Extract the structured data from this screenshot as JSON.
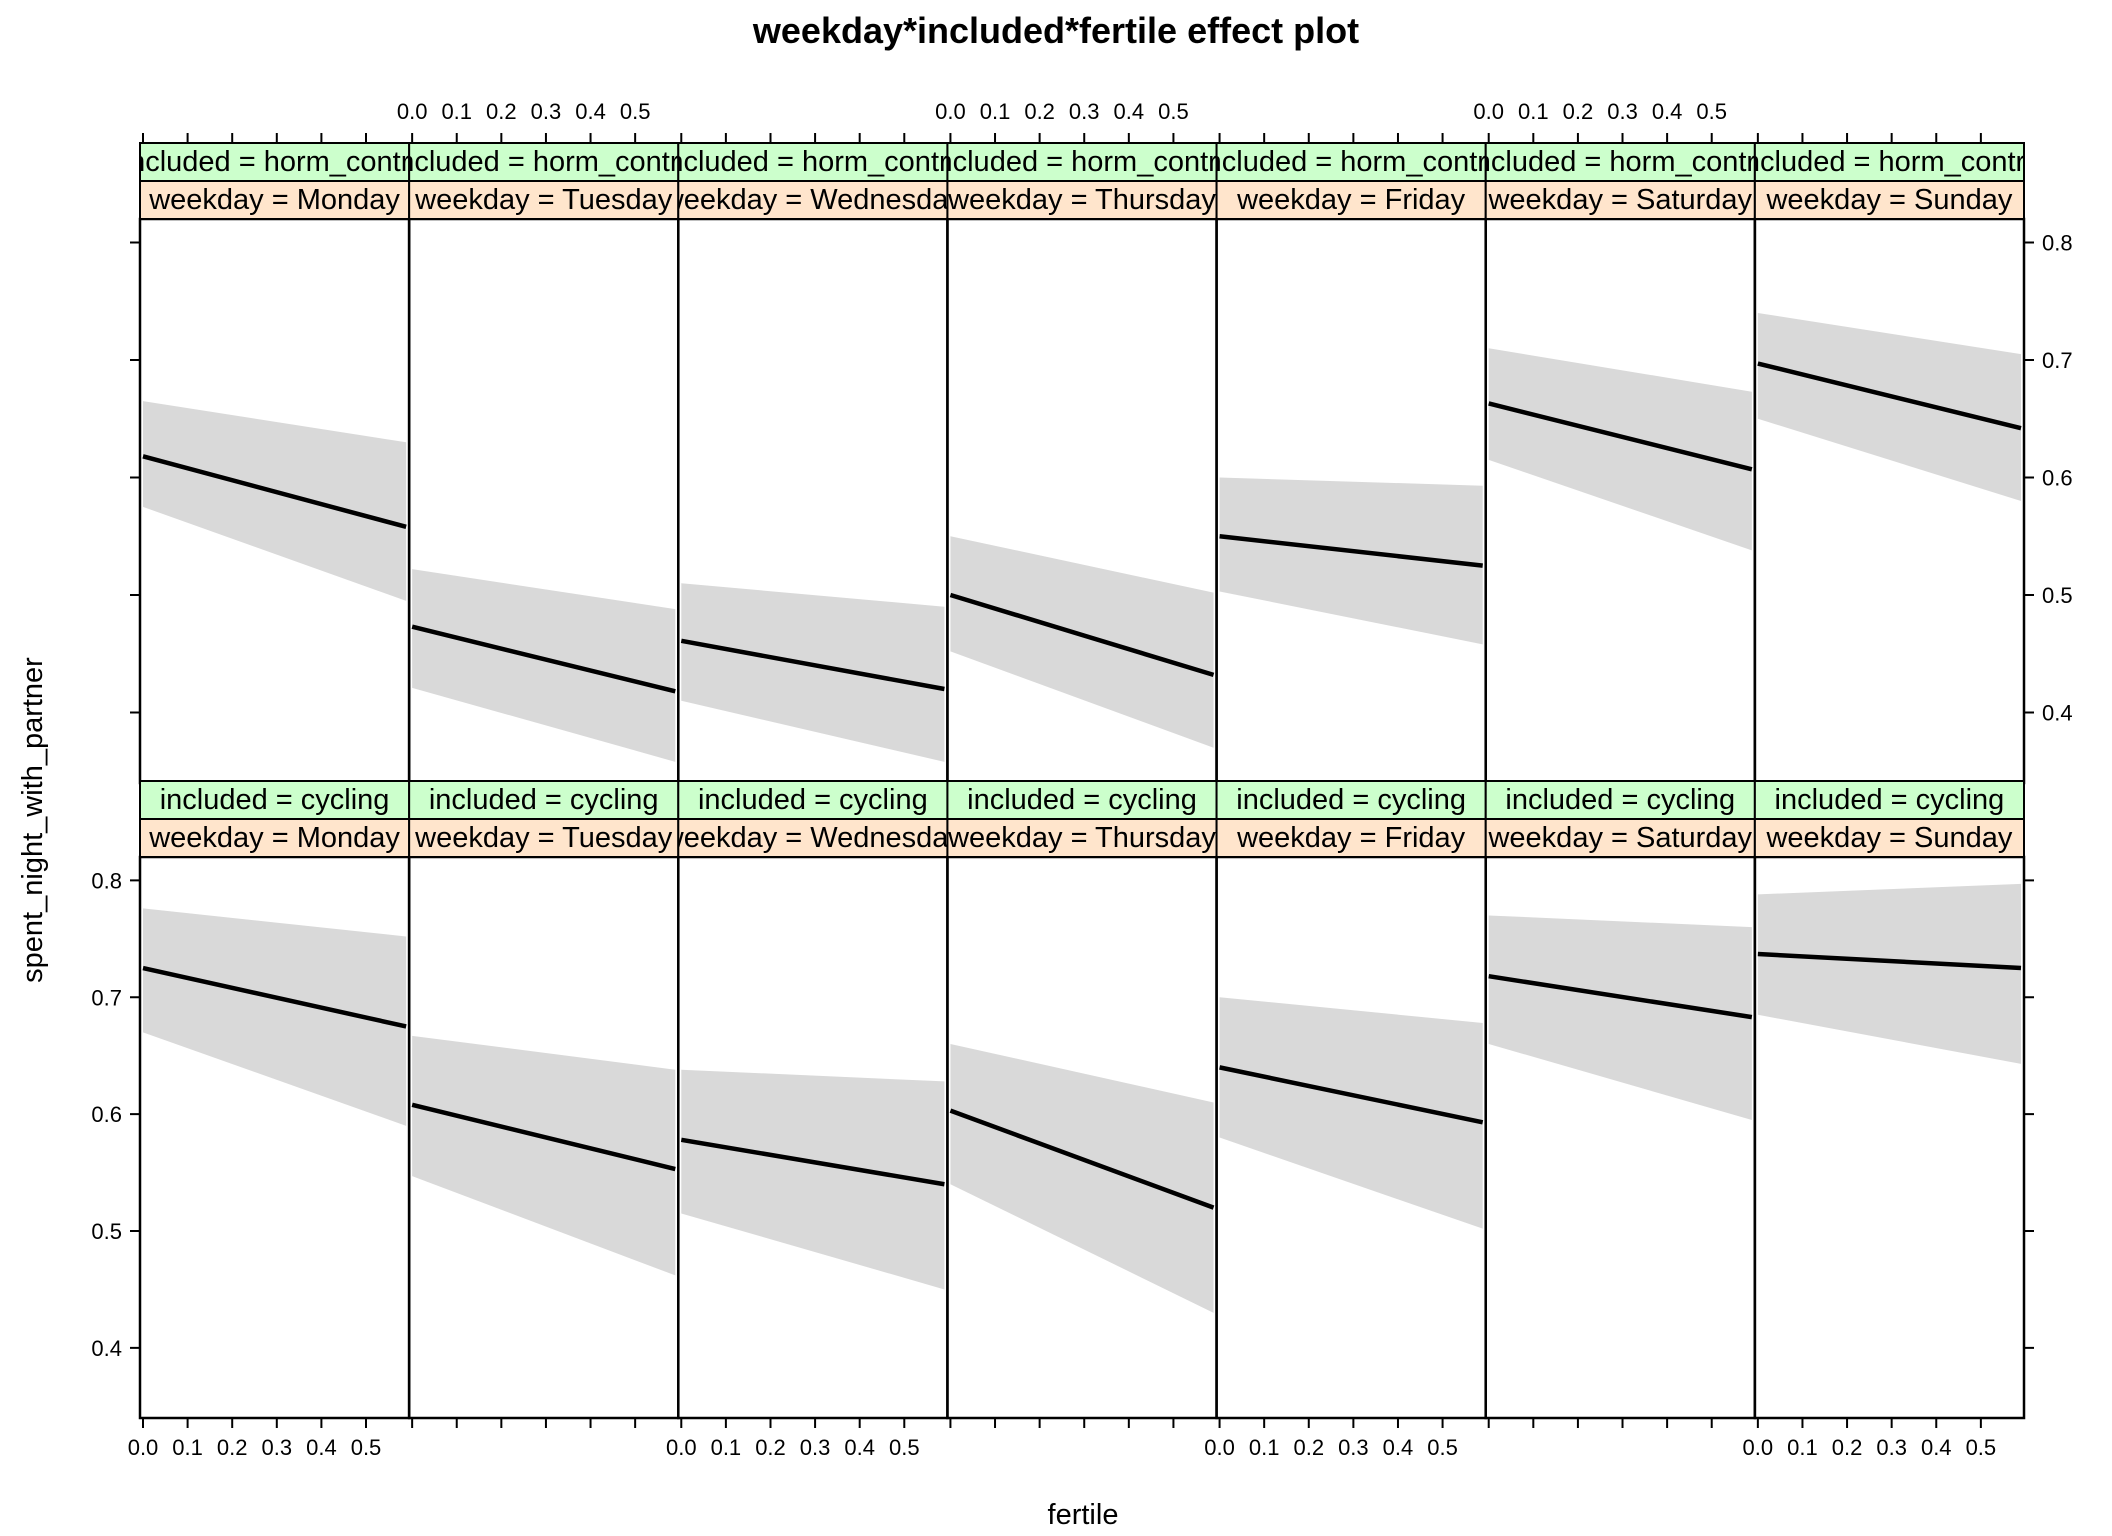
{
  "chart_data": {
    "type": "line",
    "title": "weekday*included*fertile effect plot",
    "xlabel": "fertile",
    "ylabel": "spent_night_with_partner",
    "xlim": [
      0,
      0.59
    ],
    "ylim": [
      0.34,
      0.82
    ],
    "x_ticks": [
      0.0,
      0.1,
      0.2,
      0.3,
      0.4,
      0.5
    ],
    "x_tick_labels": [
      "0.0",
      "0.1",
      "0.2",
      "0.3",
      "0.4",
      "0.5"
    ],
    "y_ticks": [
      0.4,
      0.5,
      0.6,
      0.7,
      0.8
    ],
    "y_tick_labels": [
      "0.4",
      "0.5",
      "0.6",
      "0.7",
      "0.8"
    ],
    "x": [
      0.0,
      0.59
    ],
    "strip_colors": {
      "included": "#ccffcc",
      "weekday": "#ffe5cc"
    },
    "band_color": "#d9d9d9",
    "rows": [
      {
        "strip_label": "included = horm_contra",
        "panels": [
          {
            "strip_label": "weekday = Monday",
            "fit": [
              0.618,
              0.558
            ],
            "lower": [
              0.575,
              0.495
            ],
            "upper": [
              0.665,
              0.63
            ]
          },
          {
            "strip_label": "weekday = Tuesday",
            "fit": [
              0.473,
              0.418
            ],
            "lower": [
              0.421,
              0.358
            ],
            "upper": [
              0.522,
              0.488
            ]
          },
          {
            "strip_label": "weekday = Wednesday",
            "fit": [
              0.461,
              0.42
            ],
            "lower": [
              0.41,
              0.358
            ],
            "upper": [
              0.51,
              0.49
            ]
          },
          {
            "strip_label": "weekday = Thursday",
            "fit": [
              0.5,
              0.432
            ],
            "lower": [
              0.452,
              0.37
            ],
            "upper": [
              0.55,
              0.502
            ]
          },
          {
            "strip_label": "weekday = Friday",
            "fit": [
              0.55,
              0.525
            ],
            "lower": [
              0.503,
              0.458
            ],
            "upper": [
              0.6,
              0.593
            ]
          },
          {
            "strip_label": "weekday = Saturday",
            "fit": [
              0.663,
              0.607
            ],
            "lower": [
              0.615,
              0.538
            ],
            "upper": [
              0.71,
              0.673
            ]
          },
          {
            "strip_label": "weekday = Sunday",
            "fit": [
              0.697,
              0.642
            ],
            "lower": [
              0.65,
              0.58
            ],
            "upper": [
              0.74,
              0.705
            ]
          }
        ]
      },
      {
        "strip_label": "included = cycling",
        "panels": [
          {
            "strip_label": "weekday = Monday",
            "fit": [
              0.725,
              0.675
            ],
            "lower": [
              0.67,
              0.59
            ],
            "upper": [
              0.776,
              0.752
            ]
          },
          {
            "strip_label": "weekday = Tuesday",
            "fit": [
              0.608,
              0.553
            ],
            "lower": [
              0.547,
              0.462
            ],
            "upper": [
              0.667,
              0.638
            ]
          },
          {
            "strip_label": "weekday = Wednesday",
            "fit": [
              0.578,
              0.54
            ],
            "lower": [
              0.515,
              0.45
            ],
            "upper": [
              0.638,
              0.628
            ]
          },
          {
            "strip_label": "weekday = Thursday",
            "fit": [
              0.603,
              0.52
            ],
            "lower": [
              0.54,
              0.43
            ],
            "upper": [
              0.66,
              0.61
            ]
          },
          {
            "strip_label": "weekday = Friday",
            "fit": [
              0.64,
              0.593
            ],
            "lower": [
              0.58,
              0.502
            ],
            "upper": [
              0.7,
              0.678
            ]
          },
          {
            "strip_label": "weekday = Saturday",
            "fit": [
              0.718,
              0.683
            ],
            "lower": [
              0.66,
              0.595
            ],
            "upper": [
              0.77,
              0.76
            ]
          },
          {
            "strip_label": "weekday = Sunday",
            "fit": [
              0.737,
              0.725
            ],
            "lower": [
              0.685,
              0.643
            ],
            "upper": [
              0.788,
              0.797
            ]
          }
        ]
      }
    ]
  }
}
